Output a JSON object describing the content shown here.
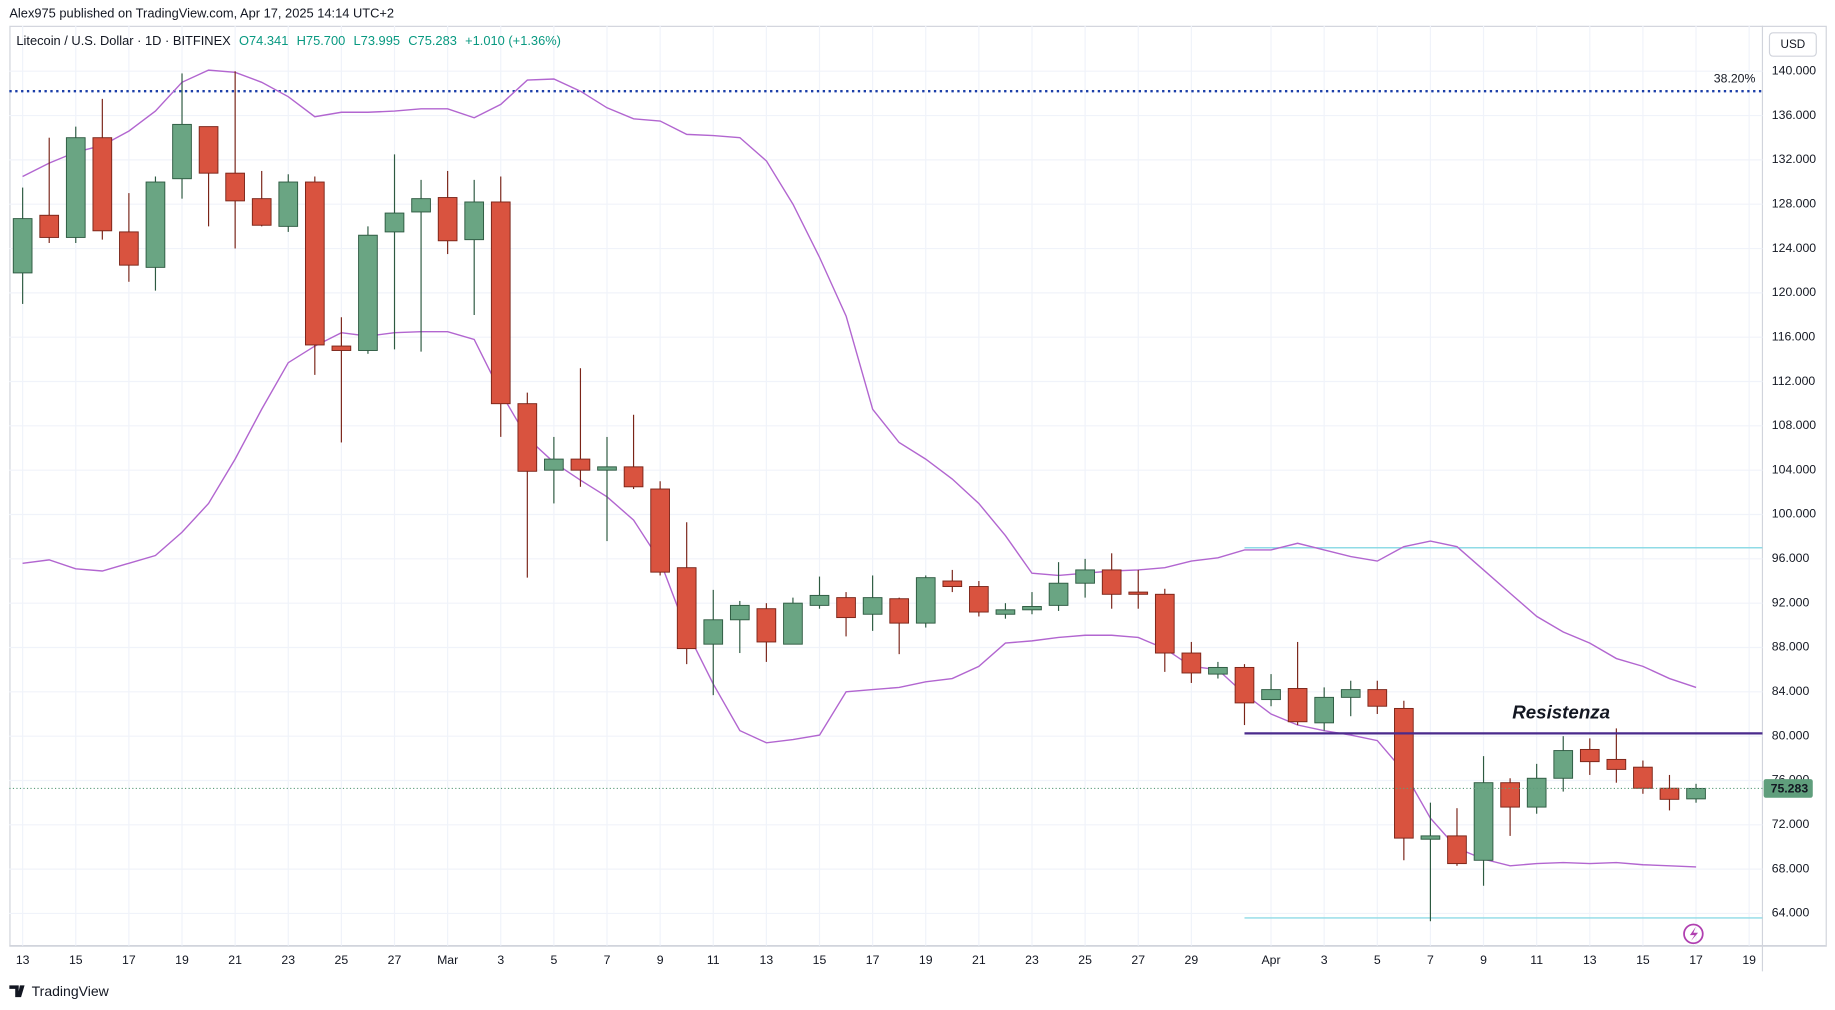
{
  "header": {
    "published": "Alex975 published on TradingView.com, Apr 17, 2025 14:14 UTC+2",
    "symbol": "Litecoin / U.S. Dollar · 1D · BITFINEX",
    "legend_values": [
      "O74.341",
      "H75.700",
      "L73.995",
      "C75.283",
      "+1.010 (+1.36%)"
    ],
    "currency": "USD"
  },
  "footer": {
    "brand": "TradingView"
  },
  "chart_data": {
    "type": "candlestick",
    "open": [
      121.8,
      127,
      125,
      134,
      125.5,
      122.3,
      130.3,
      135,
      130.8,
      128.5,
      126,
      130,
      115.2,
      114.8,
      125.5,
      127.3,
      128.6,
      124.8,
      128.2,
      110,
      104,
      105,
      104,
      104.3,
      102.3,
      95.2,
      88.3,
      90.5,
      91.5,
      88.3,
      91.8,
      92.5,
      91,
      92.4,
      90.2,
      94,
      93.5,
      91,
      91.4,
      91.8,
      93.8,
      95,
      93,
      92.8,
      87.5,
      85.6,
      86.2,
      83.3,
      84.3,
      81.2,
      83.5,
      84.2,
      82.5,
      70.7,
      71,
      68.8,
      75.8,
      73.6,
      76.2,
      78.8,
      77.9,
      77.2,
      75.3,
      74.341
    ],
    "high": [
      129.5,
      134,
      135,
      137.5,
      129,
      130.5,
      139.8,
      135,
      140,
      131,
      130.7,
      130.5,
      117.8,
      126,
      132.5,
      130.2,
      131,
      130.2,
      130.5,
      111,
      107,
      113.2,
      107,
      109,
      103,
      99.3,
      93.2,
      92.2,
      92,
      92.5,
      94.4,
      93,
      94.5,
      92.5,
      94.5,
      95,
      94,
      92,
      93,
      95.7,
      96,
      96.5,
      95,
      93.3,
      88.5,
      86.7,
      86.5,
      85.6,
      88.5,
      84.4,
      85,
      85,
      83.2,
      74,
      73.5,
      78.2,
      76.2,
      77.5,
      80,
      79.8,
      80.7,
      77.8,
      76.5,
      75.7
    ],
    "low": [
      119,
      124.5,
      124.5,
      124.8,
      121,
      120.2,
      128.5,
      126,
      124,
      126,
      125.5,
      112.6,
      106.5,
      114.5,
      114.9,
      114.7,
      123.5,
      118,
      107,
      94.3,
      101,
      102.5,
      97.6,
      102.3,
      94.5,
      86.5,
      83.7,
      87.5,
      86.7,
      88.3,
      91.5,
      89,
      89.5,
      87.4,
      89.8,
      93,
      90.8,
      90.6,
      91,
      91.3,
      92.5,
      91.5,
      91.5,
      85.8,
      84.8,
      85.2,
      81,
      82.7,
      81,
      80.5,
      81.8,
      82,
      68.8,
      63.3,
      68.3,
      66.5,
      71,
      73,
      75,
      76.5,
      75.8,
      74.8,
      73.3,
      73.995
    ],
    "close": [
      126.7,
      125,
      134,
      125.6,
      122.5,
      130,
      135.2,
      130.8,
      128.3,
      126.1,
      130,
      115.3,
      114.8,
      125.2,
      127.2,
      128.5,
      124.7,
      128.2,
      110,
      103.9,
      105,
      104,
      104.3,
      102.5,
      94.8,
      87.9,
      90.5,
      91.8,
      88.5,
      92,
      92.7,
      90.7,
      92.5,
      90.2,
      94.3,
      93.5,
      91.2,
      91.4,
      91.7,
      93.8,
      95,
      92.8,
      92.8,
      87.5,
      85.7,
      86.2,
      83,
      84.2,
      81.3,
      83.5,
      84.2,
      82.7,
      70.8,
      71,
      68.5,
      75.8,
      73.6,
      76.2,
      78.7,
      77.7,
      77,
      75.3,
      74.3,
      75.283
    ],
    "up_color": "#6aa583",
    "down_color": "#d9533f",
    "edge_up": "#2d5a41",
    "edge_down": "#7a2418",
    "upper_band": [
      130.5,
      131.7,
      132.7,
      133.3,
      134.6,
      136.4,
      139,
      140.1,
      139.9,
      139,
      137.7,
      135.9,
      136.3,
      136.3,
      136.4,
      136.6,
      136.6,
      135.8,
      137,
      139.2,
      139.3,
      138.2,
      136.7,
      135.7,
      135.5,
      134.3,
      134.2,
      134,
      131.9,
      128,
      123.2,
      117.9,
      109.5,
      106.5,
      105,
      103.2,
      101,
      98.1,
      94.7,
      94.5,
      94.7,
      94.9,
      95,
      95.2,
      95.8,
      96.1,
      96.8,
      96.8,
      97.4,
      96.8,
      96.2,
      95.8,
      97.1,
      97.6,
      97.1,
      95,
      92.9,
      90.8,
      89.4,
      88.4,
      87,
      86.3,
      85.2,
      84.4
    ],
    "lower_band": [
      95.6,
      95.9,
      95.1,
      94.9,
      95.6,
      96.3,
      98.4,
      101,
      105,
      109.5,
      113.7,
      115.2,
      116.4,
      116.1,
      116.4,
      116.5,
      116.5,
      115.8,
      111,
      106.9,
      104.7,
      103.1,
      101.6,
      99.5,
      95.8,
      89.5,
      84.7,
      80.5,
      79.4,
      79.7,
      80.1,
      84,
      84.2,
      84.4,
      84.9,
      85.2,
      86.3,
      88.4,
      88.6,
      88.9,
      89.1,
      89.1,
      88.9,
      87.9,
      86.3,
      86,
      83.8,
      82,
      81,
      80.5,
      80.1,
      79.6,
      76.8,
      72.6,
      69.9,
      68.9,
      68.3,
      68.5,
      68.6,
      68.5,
      68.6,
      68.4,
      68.3,
      68.2
    ],
    "band_color": "#b266d0",
    "fib": {
      "price": 138.2,
      "label": "38.20%",
      "color": "#1c3fa8"
    },
    "resistance": {
      "price": 80.25,
      "label": "Resistenza",
      "start": 46,
      "color": "#4a2a8c",
      "label_color": "#a23bb8"
    },
    "ranges": [
      {
        "price": 97,
        "start": 46
      },
      {
        "price": 63.6,
        "start": 46
      }
    ],
    "range_color": "#8fdbe6",
    "last_color": "#5f9e7c",
    "xlim": [
      -0.5,
      65.5
    ],
    "ylim": [
      61.1,
      144.1
    ],
    "xticks": [
      {
        "value": 0,
        "label": "13"
      },
      {
        "value": 2,
        "label": "15"
      },
      {
        "value": 4,
        "label": "17"
      },
      {
        "value": 6,
        "label": "19"
      },
      {
        "value": 8,
        "label": "21"
      },
      {
        "value": 10,
        "label": "23"
      },
      {
        "value": 12,
        "label": "25"
      },
      {
        "value": 14,
        "label": "27"
      },
      {
        "value": 16,
        "label": "Mar"
      },
      {
        "value": 18,
        "label": "3"
      },
      {
        "value": 20,
        "label": "5"
      },
      {
        "value": 22,
        "label": "7"
      },
      {
        "value": 24,
        "label": "9"
      },
      {
        "value": 26,
        "label": "11"
      },
      {
        "value": 28,
        "label": "13"
      },
      {
        "value": 30,
        "label": "15"
      },
      {
        "value": 32,
        "label": "17"
      },
      {
        "value": 34,
        "label": "19"
      },
      {
        "value": 36,
        "label": "21"
      },
      {
        "value": 38,
        "label": "23"
      },
      {
        "value": 40,
        "label": "25"
      },
      {
        "value": 42,
        "label": "27"
      },
      {
        "value": 44,
        "label": "29"
      },
      {
        "value": 47,
        "label": "Apr"
      },
      {
        "value": 49,
        "label": "3"
      },
      {
        "value": 51,
        "label": "5"
      },
      {
        "value": 53,
        "label": "7"
      },
      {
        "value": 55,
        "label": "9"
      },
      {
        "value": 57,
        "label": "11"
      },
      {
        "value": 59,
        "label": "13"
      },
      {
        "value": 61,
        "label": "15"
      },
      {
        "value": 63,
        "label": "17"
      },
      {
        "value": 65,
        "label": "19"
      }
    ],
    "yticks": [
      {
        "value": 64,
        "label": "64.000"
      },
      {
        "value": 68,
        "label": "68.000"
      },
      {
        "value": 72,
        "label": "72.000"
      },
      {
        "value": 76,
        "label": "76.000"
      },
      {
        "value": 80,
        "label": "80.000"
      },
      {
        "value": 84,
        "label": "84.000"
      },
      {
        "value": 88,
        "label": "88.000"
      },
      {
        "value": 92,
        "label": "92.000"
      },
      {
        "value": 96,
        "label": "96.000"
      },
      {
        "value": 100,
        "label": "100.000"
      },
      {
        "value": 104,
        "label": "104.000"
      },
      {
        "value": 108,
        "label": "108.000"
      },
      {
        "value": 112,
        "label": "112.000"
      },
      {
        "value": 116,
        "label": "116.000"
      },
      {
        "value": 120,
        "label": "120.000"
      },
      {
        "value": 124,
        "label": "124.000"
      },
      {
        "value": 128,
        "label": "128.000"
      },
      {
        "value": 132,
        "label": "132.000"
      },
      {
        "value": 136,
        "label": "136.000"
      },
      {
        "value": 140,
        "label": "140.000"
      }
    ],
    "grid": true
  }
}
